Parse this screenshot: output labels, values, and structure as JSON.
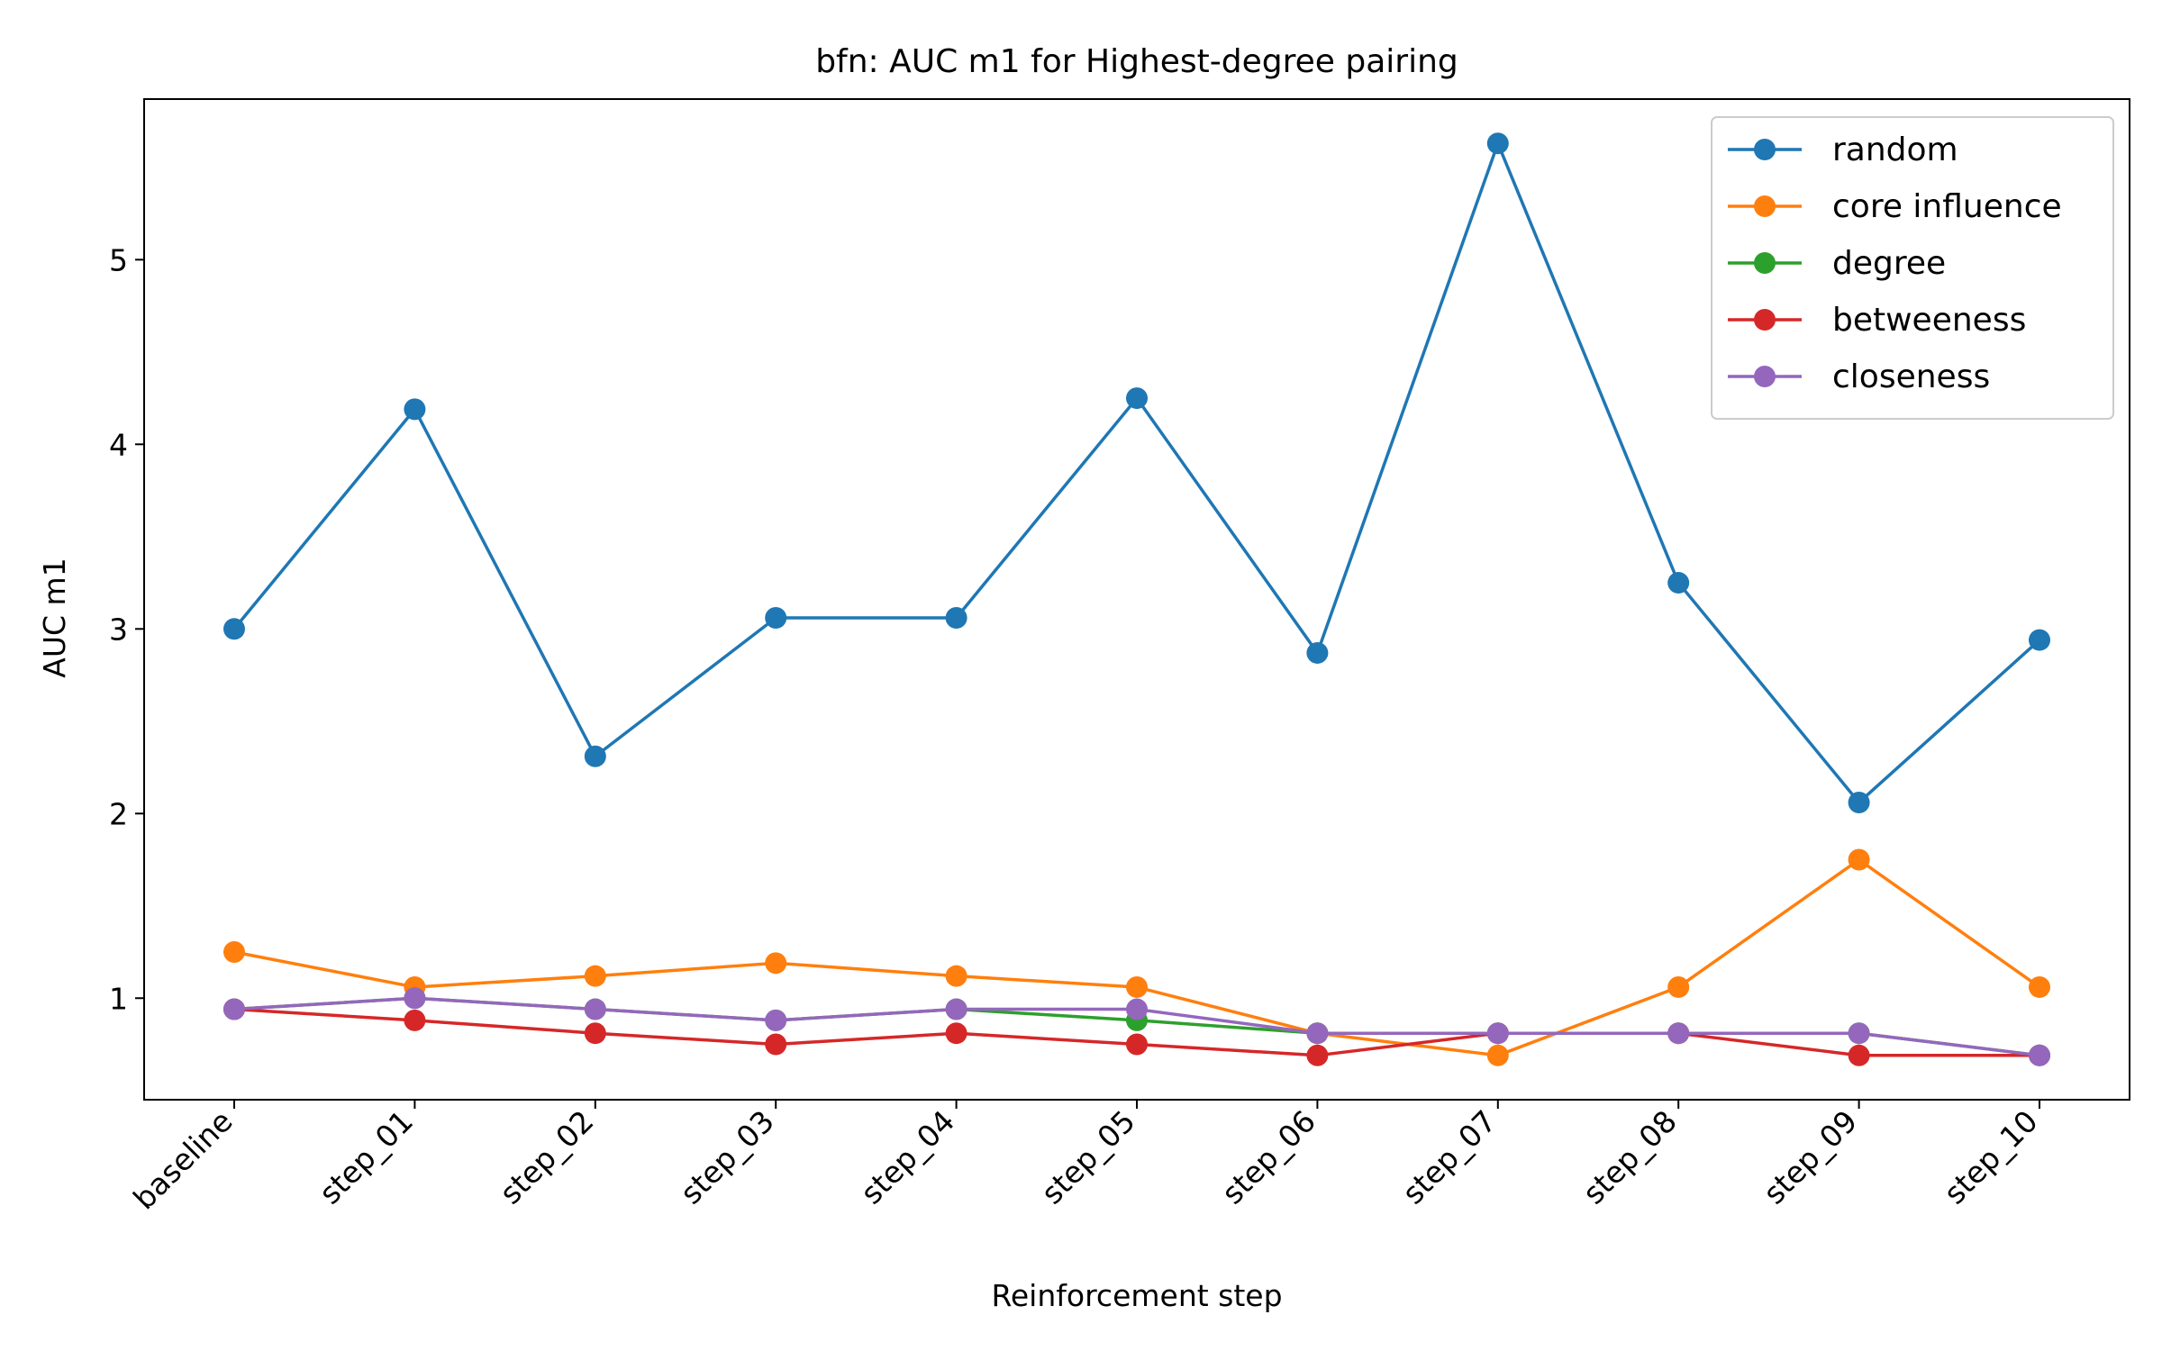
{
  "chart_data": {
    "type": "line",
    "title": "bfn: AUC m1 for Highest-degree pairing",
    "xlabel": "Reinforcement step",
    "ylabel": "AUC m1",
    "categories": [
      "baseline",
      "step_01",
      "step_02",
      "step_03",
      "step_04",
      "step_05",
      "step_06",
      "step_07",
      "step_08",
      "step_09",
      "step_10"
    ],
    "ylim": [
      0.45,
      5.87
    ],
    "yticks": [
      1,
      2,
      3,
      4,
      5
    ],
    "grid": false,
    "legend": "top-right",
    "series": [
      {
        "name": "random",
        "color": "#1f77b4",
        "values": [
          3.0,
          4.19,
          2.31,
          3.06,
          3.06,
          4.25,
          2.87,
          5.63,
          3.25,
          2.06,
          2.94
        ]
      },
      {
        "name": "core influence",
        "color": "#ff7f0e",
        "values": [
          1.25,
          1.06,
          1.12,
          1.19,
          1.12,
          1.06,
          0.81,
          0.69,
          1.06,
          1.75,
          1.06
        ]
      },
      {
        "name": "degree",
        "color": "#2ca02c",
        "values": [
          0.94,
          1.0,
          0.94,
          0.88,
          0.94,
          0.88,
          0.81,
          0.81,
          0.81,
          0.81,
          0.69
        ]
      },
      {
        "name": "betweeness",
        "color": "#d62728",
        "values": [
          0.94,
          0.88,
          0.81,
          0.75,
          0.81,
          0.75,
          0.69,
          0.81,
          0.81,
          0.69,
          0.69
        ]
      },
      {
        "name": "closeness",
        "color": "#9467bd",
        "values": [
          0.94,
          1.0,
          0.94,
          0.88,
          0.94,
          0.94,
          0.81,
          0.81,
          0.81,
          0.81,
          0.69
        ]
      }
    ]
  }
}
